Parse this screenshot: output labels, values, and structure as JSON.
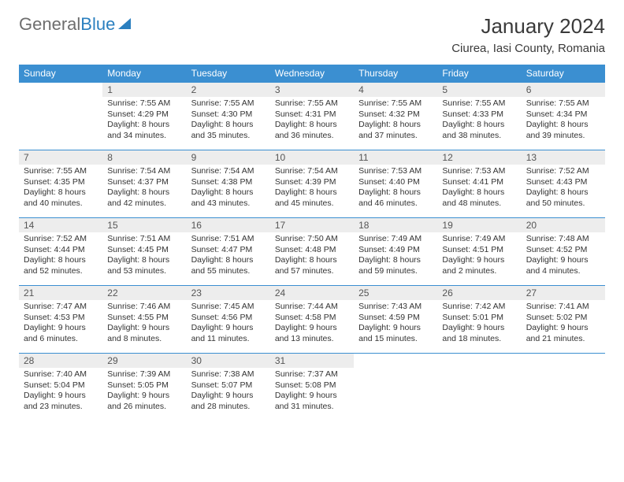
{
  "logo": {
    "part1": "General",
    "part2": "Blue"
  },
  "title": "January 2024",
  "location": "Ciurea, Iasi County, Romania",
  "colors": {
    "header_bg": "#3b8fd1",
    "header_text": "#ffffff",
    "daynum_bg": "#ededed",
    "cell_border": "#3b8fd1",
    "logo_gray": "#6e6e6e",
    "logo_blue": "#2a7fbf"
  },
  "columns": [
    "Sunday",
    "Monday",
    "Tuesday",
    "Wednesday",
    "Thursday",
    "Friday",
    "Saturday"
  ],
  "weeks": [
    [
      {
        "n": "",
        "empty": true
      },
      {
        "n": "1",
        "sr": "7:55 AM",
        "ss": "4:29 PM",
        "dl": "8 hours and 34 minutes."
      },
      {
        "n": "2",
        "sr": "7:55 AM",
        "ss": "4:30 PM",
        "dl": "8 hours and 35 minutes."
      },
      {
        "n": "3",
        "sr": "7:55 AM",
        "ss": "4:31 PM",
        "dl": "8 hours and 36 minutes."
      },
      {
        "n": "4",
        "sr": "7:55 AM",
        "ss": "4:32 PM",
        "dl": "8 hours and 37 minutes."
      },
      {
        "n": "5",
        "sr": "7:55 AM",
        "ss": "4:33 PM",
        "dl": "8 hours and 38 minutes."
      },
      {
        "n": "6",
        "sr": "7:55 AM",
        "ss": "4:34 PM",
        "dl": "8 hours and 39 minutes."
      }
    ],
    [
      {
        "n": "7",
        "sr": "7:55 AM",
        "ss": "4:35 PM",
        "dl": "8 hours and 40 minutes."
      },
      {
        "n": "8",
        "sr": "7:54 AM",
        "ss": "4:37 PM",
        "dl": "8 hours and 42 minutes."
      },
      {
        "n": "9",
        "sr": "7:54 AM",
        "ss": "4:38 PM",
        "dl": "8 hours and 43 minutes."
      },
      {
        "n": "10",
        "sr": "7:54 AM",
        "ss": "4:39 PM",
        "dl": "8 hours and 45 minutes."
      },
      {
        "n": "11",
        "sr": "7:53 AM",
        "ss": "4:40 PM",
        "dl": "8 hours and 46 minutes."
      },
      {
        "n": "12",
        "sr": "7:53 AM",
        "ss": "4:41 PM",
        "dl": "8 hours and 48 minutes."
      },
      {
        "n": "13",
        "sr": "7:52 AM",
        "ss": "4:43 PM",
        "dl": "8 hours and 50 minutes."
      }
    ],
    [
      {
        "n": "14",
        "sr": "7:52 AM",
        "ss": "4:44 PM",
        "dl": "8 hours and 52 minutes."
      },
      {
        "n": "15",
        "sr": "7:51 AM",
        "ss": "4:45 PM",
        "dl": "8 hours and 53 minutes."
      },
      {
        "n": "16",
        "sr": "7:51 AM",
        "ss": "4:47 PM",
        "dl": "8 hours and 55 minutes."
      },
      {
        "n": "17",
        "sr": "7:50 AM",
        "ss": "4:48 PM",
        "dl": "8 hours and 57 minutes."
      },
      {
        "n": "18",
        "sr": "7:49 AM",
        "ss": "4:49 PM",
        "dl": "8 hours and 59 minutes."
      },
      {
        "n": "19",
        "sr": "7:49 AM",
        "ss": "4:51 PM",
        "dl": "9 hours and 2 minutes."
      },
      {
        "n": "20",
        "sr": "7:48 AM",
        "ss": "4:52 PM",
        "dl": "9 hours and 4 minutes."
      }
    ],
    [
      {
        "n": "21",
        "sr": "7:47 AM",
        "ss": "4:53 PM",
        "dl": "9 hours and 6 minutes."
      },
      {
        "n": "22",
        "sr": "7:46 AM",
        "ss": "4:55 PM",
        "dl": "9 hours and 8 minutes."
      },
      {
        "n": "23",
        "sr": "7:45 AM",
        "ss": "4:56 PM",
        "dl": "9 hours and 11 minutes."
      },
      {
        "n": "24",
        "sr": "7:44 AM",
        "ss": "4:58 PM",
        "dl": "9 hours and 13 minutes."
      },
      {
        "n": "25",
        "sr": "7:43 AM",
        "ss": "4:59 PM",
        "dl": "9 hours and 15 minutes."
      },
      {
        "n": "26",
        "sr": "7:42 AM",
        "ss": "5:01 PM",
        "dl": "9 hours and 18 minutes."
      },
      {
        "n": "27",
        "sr": "7:41 AM",
        "ss": "5:02 PM",
        "dl": "9 hours and 21 minutes."
      }
    ],
    [
      {
        "n": "28",
        "sr": "7:40 AM",
        "ss": "5:04 PM",
        "dl": "9 hours and 23 minutes."
      },
      {
        "n": "29",
        "sr": "7:39 AM",
        "ss": "5:05 PM",
        "dl": "9 hours and 26 minutes."
      },
      {
        "n": "30",
        "sr": "7:38 AM",
        "ss": "5:07 PM",
        "dl": "9 hours and 28 minutes."
      },
      {
        "n": "31",
        "sr": "7:37 AM",
        "ss": "5:08 PM",
        "dl": "9 hours and 31 minutes."
      },
      {
        "n": "",
        "empty": true
      },
      {
        "n": "",
        "empty": true
      },
      {
        "n": "",
        "empty": true
      }
    ]
  ],
  "labels": {
    "sunrise": "Sunrise:",
    "sunset": "Sunset:",
    "daylight": "Daylight:"
  }
}
